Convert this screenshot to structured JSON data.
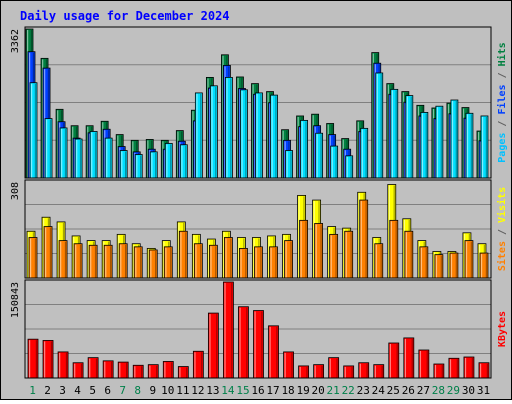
{
  "chart_data": {
    "type": "bar",
    "title": "Daily usage for December 2024",
    "days": [
      "1",
      "2",
      "3",
      "4",
      "5",
      "6",
      "7",
      "8",
      "9",
      "10",
      "11",
      "12",
      "13",
      "14",
      "15",
      "16",
      "17",
      "18",
      "19",
      "20",
      "21",
      "22",
      "23",
      "24",
      "25",
      "26",
      "27",
      "28",
      "29",
      "30",
      "31"
    ],
    "weekend_days": [
      "1",
      "7",
      "8",
      "14",
      "15",
      "21",
      "22",
      "28",
      "29"
    ],
    "panels": [
      {
        "id": "hits-files-pages",
        "ymax": 3362,
        "ymax_label": "3362",
        "side_labels": [
          {
            "text": "Pages",
            "color": "#00c0ff"
          },
          {
            "text": " / ",
            "color": "#606060"
          },
          {
            "text": "Files",
            "color": "#0040ff"
          },
          {
            "text": " / ",
            "color": "#606060"
          },
          {
            "text": "Hits",
            "color": "#008040"
          }
        ],
        "series": [
          {
            "name": "Hits",
            "color": "#008040",
            "values": [
              3362,
              2700,
              1550,
              1180,
              1180,
              1280,
              980,
              850,
              870,
              850,
              1070,
              1530,
              2270,
              2780,
              2280,
              2130,
              1950,
              1090,
              1400,
              1440,
              1230,
              890,
              1290,
              2830,
              2130,
              1950,
              1640,
              1580,
              1690,
              1590,
              1060
            ]
          },
          {
            "name": "Files",
            "color": "#0040ff",
            "values": [
              2850,
              2480,
              1270,
              900,
              1020,
              1100,
              710,
              590,
              650,
              650,
              830,
              1290,
              2030,
              2540,
              2020,
              1890,
              1700,
              850,
              1160,
              1180,
              980,
              650,
              1050,
              2590,
              1890,
              1710,
              1400,
              1340,
              1450,
              1350,
              840
            ]
          },
          {
            "name": "Pages",
            "color": "#00e0ff",
            "values": [
              2150,
              1340,
              1130,
              880,
              1050,
              900,
              620,
              530,
              590,
              780,
              750,
              1920,
              2080,
              2270,
              1990,
              1920,
              1870,
              620,
              1300,
              1010,
              720,
              500,
              1120,
              2370,
              2000,
              1860,
              1480,
              1620,
              1760,
              1460,
              1400
            ]
          }
        ]
      },
      {
        "id": "visits-sites",
        "ymax": 308,
        "ymax_label": "308",
        "side_labels": [
          {
            "text": "Sites",
            "color": "#ff8000"
          },
          {
            "text": " / ",
            "color": "#606060"
          },
          {
            "text": "Visits",
            "color": "#ffff00"
          }
        ],
        "series": [
          {
            "name": "Visits",
            "color": "#ffff00",
            "values": [
              150,
              195,
              180,
              135,
              120,
              120,
              140,
              110,
              95,
              120,
              180,
              140,
              125,
              150,
              130,
              130,
              135,
              140,
              265,
              250,
              165,
              160,
              275,
              130,
              300,
              190,
              120,
              85,
              85,
              145,
              110
            ]
          },
          {
            "name": "Sites",
            "color": "#ff8000",
            "values": [
              130,
              165,
              120,
              110,
              105,
              105,
              110,
              100,
              90,
              100,
              150,
              110,
              105,
              130,
              95,
              100,
              100,
              120,
              185,
              175,
              140,
              150,
              250,
              110,
              185,
              150,
              100,
              75,
              80,
              120,
              80
            ]
          }
        ]
      },
      {
        "id": "kbytes",
        "ymax": 150843,
        "ymax_label": "150843",
        "side_labels": [
          {
            "text": "KBytes",
            "color": "#ff0000"
          }
        ],
        "series": [
          {
            "name": "KBytes",
            "color": "#ff0000",
            "values": [
              61000,
              59000,
              41000,
              24000,
              32000,
              27000,
              25000,
              20000,
              21000,
              26000,
              18000,
              42000,
              102000,
              150843,
              112000,
              106000,
              82000,
              41000,
              19000,
              21000,
              32000,
              19000,
              24000,
              21000,
              55000,
              63000,
              44000,
              22000,
              31000,
              33000,
              24000
            ]
          }
        ]
      }
    ]
  }
}
